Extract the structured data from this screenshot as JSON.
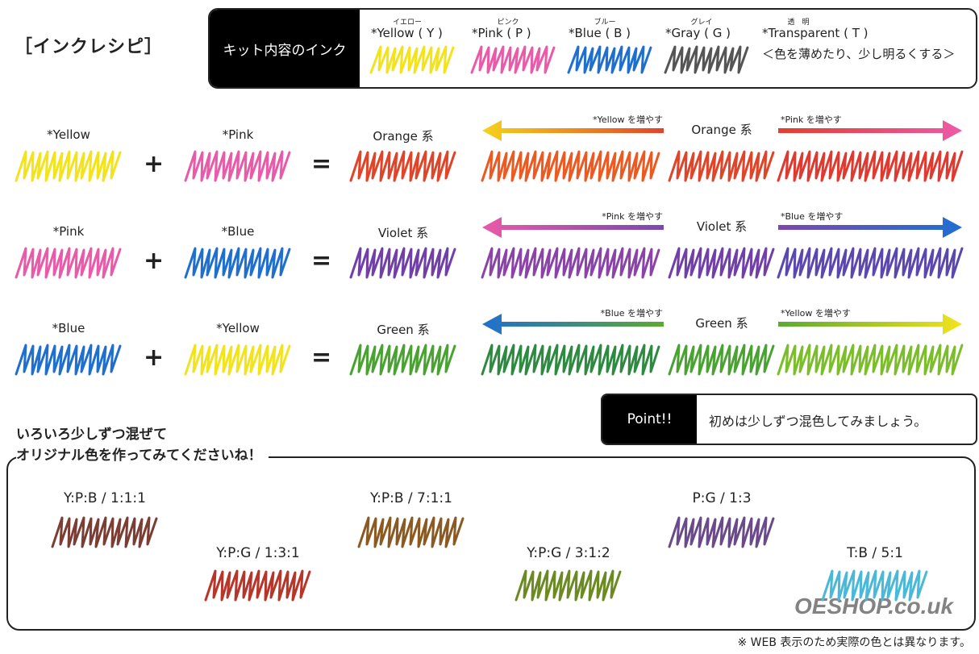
{
  "title": "［インクレシピ］",
  "kit": {
    "label": "キット内容のインク",
    "inks": [
      {
        "ruby": "イエロー",
        "name": "*Yellow ( Y )",
        "color": "#f3e31c"
      },
      {
        "ruby": "ピンク",
        "name": "*Pink ( P )",
        "color": "#e95aa8"
      },
      {
        "ruby": "ブルー",
        "name": "*Blue ( B )",
        "color": "#1f6fd0"
      },
      {
        "ruby": "グレイ",
        "name": "*Gray ( G )",
        "color": "#555555"
      },
      {
        "ruby": "透　明",
        "name": "*Transparent ( T )",
        "color": null
      }
    ],
    "transparent_note": "＜色を薄めたり、少し明るくする＞"
  },
  "rows": [
    {
      "a": {
        "label": "*Yellow",
        "color": "#f3e31c"
      },
      "b": {
        "label": "*Pink",
        "color": "#e95aa8"
      },
      "plus": "+",
      "equals": "=",
      "result": {
        "label": "Orange 系",
        "color": "#e0452a"
      },
      "left": {
        "label": "*Yellow を増やす",
        "from": "#f5d21c",
        "to": "#e0452a",
        "color": "#ec5a22"
      },
      "center": {
        "label": "Orange 系",
        "color": "#e0452a"
      },
      "right": {
        "label": "*Pink を増やす",
        "from": "#e0402e",
        "to": "#ec5aa8",
        "color": "#e03a30"
      }
    },
    {
      "a": {
        "label": "*Pink",
        "color": "#e95aa8"
      },
      "b": {
        "label": "*Blue",
        "color": "#1f6fd0"
      },
      "plus": "+",
      "equals": "=",
      "result": {
        "label": "Violet 系",
        "color": "#7040a8"
      },
      "left": {
        "label": "*Pink を増やす",
        "from": "#e95aa8",
        "to": "#7a48b0",
        "color": "#8a44a8"
      },
      "center": {
        "label": "Violet 系",
        "color": "#7040a8"
      },
      "right": {
        "label": "*Blue を増やす",
        "from": "#7a48b0",
        "to": "#1f6fd0",
        "color": "#5a48b0"
      }
    },
    {
      "a": {
        "label": "*Blue",
        "color": "#1f6fd0"
      },
      "b": {
        "label": "*Yellow",
        "color": "#f3e31c"
      },
      "plus": "+",
      "equals": "=",
      "result": {
        "label": "Green 系",
        "color": "#4aa232"
      },
      "left": {
        "label": "*Blue を増やす",
        "from": "#1f6fd0",
        "to": "#5aaa32",
        "color": "#2d8a40"
      },
      "center": {
        "label": "Green 系",
        "color": "#4aa232"
      },
      "right": {
        "label": "*Yellow を増やす",
        "from": "#5aaa32",
        "to": "#f3e31c",
        "color": "#7bbd2a"
      }
    }
  ],
  "point": {
    "badge": "Point!!",
    "text": "初めは少しずつ混色してみましょう。"
  },
  "mix_heading": [
    "いろいろ少しずつ混ぜて",
    "オリジナル色を作ってみてくださいね！"
  ],
  "recipes": [
    {
      "label": "Y:P:B / 1:1:1",
      "color": "#7a3e35"
    },
    {
      "label": "Y:P:G / 1:3:1",
      "color": "#b8352a"
    },
    {
      "label": "Y:P:B / 7:1:1",
      "color": "#8a5a22"
    },
    {
      "label": "Y:P:G / 3:1:2",
      "color": "#6b8a22"
    },
    {
      "label": "P:G / 1:3",
      "color": "#6a4a8a"
    },
    {
      "label": "T:B / 5:1",
      "color": "#4ab8d8"
    }
  ],
  "footnote": "※ WEB 表示のため実際の色とは異なります。",
  "watermark": "OESHOP.co.uk"
}
